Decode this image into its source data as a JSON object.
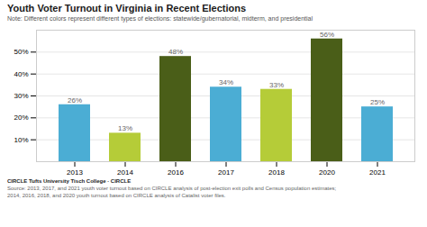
{
  "chart_data": {
    "type": "bar",
    "title": "Youth Voter Turnout in Virginia in Recent Elections",
    "subtitle": "Note: Different colors represent different types of elections: statewide/gubernatorial, midterm, and presidential",
    "annotations": [
      "CIRCLE Tufts University Tisch College · CIRCLE",
      "Source: 2013, 2017, and 2021 youth voter turnout based on CIRCLE analysis of post-election exit polls and Census population estimates;",
      "2014, 2016, 2018, and 2020 youth turnout based on CIRCLE analysis of Catalist voter files."
    ],
    "categories": [
      "2013",
      "2014",
      "2016",
      "2017",
      "2018",
      "2020",
      "2021"
    ],
    "values": [
      26,
      13,
      48,
      34,
      33,
      56,
      25
    ],
    "value_labels": [
      "26%",
      "13%",
      "48%",
      "34%",
      "33%",
      "56%",
      "25%"
    ],
    "data_labels": true,
    "colors": [
      "#4badd4",
      "#b5cc38",
      "#4a5e18",
      "#4badd4",
      "#b5cc38",
      "#4a5e18",
      "#4badd4"
    ],
    "ylim": [
      0,
      60
    ],
    "yticks": [
      {
        "value": 10,
        "label": "10%"
      },
      {
        "value": 20,
        "label": "20%"
      },
      {
        "value": 30,
        "label": "30%"
      },
      {
        "value": 40,
        "label": "40%"
      },
      {
        "value": 50,
        "label": "50%"
      }
    ],
    "grid": true
  }
}
